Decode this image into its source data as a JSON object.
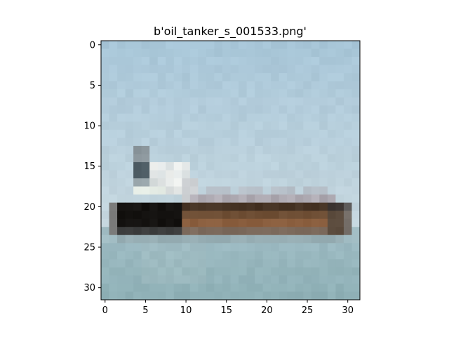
{
  "figure": {
    "title": "b'oil_tanker_s_001533.png'"
  },
  "image": {
    "description_kind": "low-resolution pixelated photo",
    "grid_size": [
      32,
      32
    ],
    "subject": "oil tanker ship on water",
    "colors": {
      "sky_top": "#a8c6d8",
      "sky_bottom": "#c6d7df",
      "water_top": "#9fbcc4",
      "water_bottom": "#8fb0b6",
      "hull_dark": "#141210",
      "hull_brown": "#6e4e34",
      "deck_red_brown": "#8a5e3e",
      "superstructure_white": "#eef0ee",
      "superstructure_grey": "#4f5e66",
      "deck_mauve": "#a7a2aa"
    }
  },
  "axes": {
    "x_ticks": [
      "0",
      "5",
      "10",
      "15",
      "20",
      "25",
      "30"
    ],
    "y_ticks": [
      "0",
      "5",
      "10",
      "15",
      "20",
      "25",
      "30"
    ],
    "x_range": [
      -0.5,
      31.5
    ],
    "y_range": [
      -0.5,
      31.5
    ]
  }
}
